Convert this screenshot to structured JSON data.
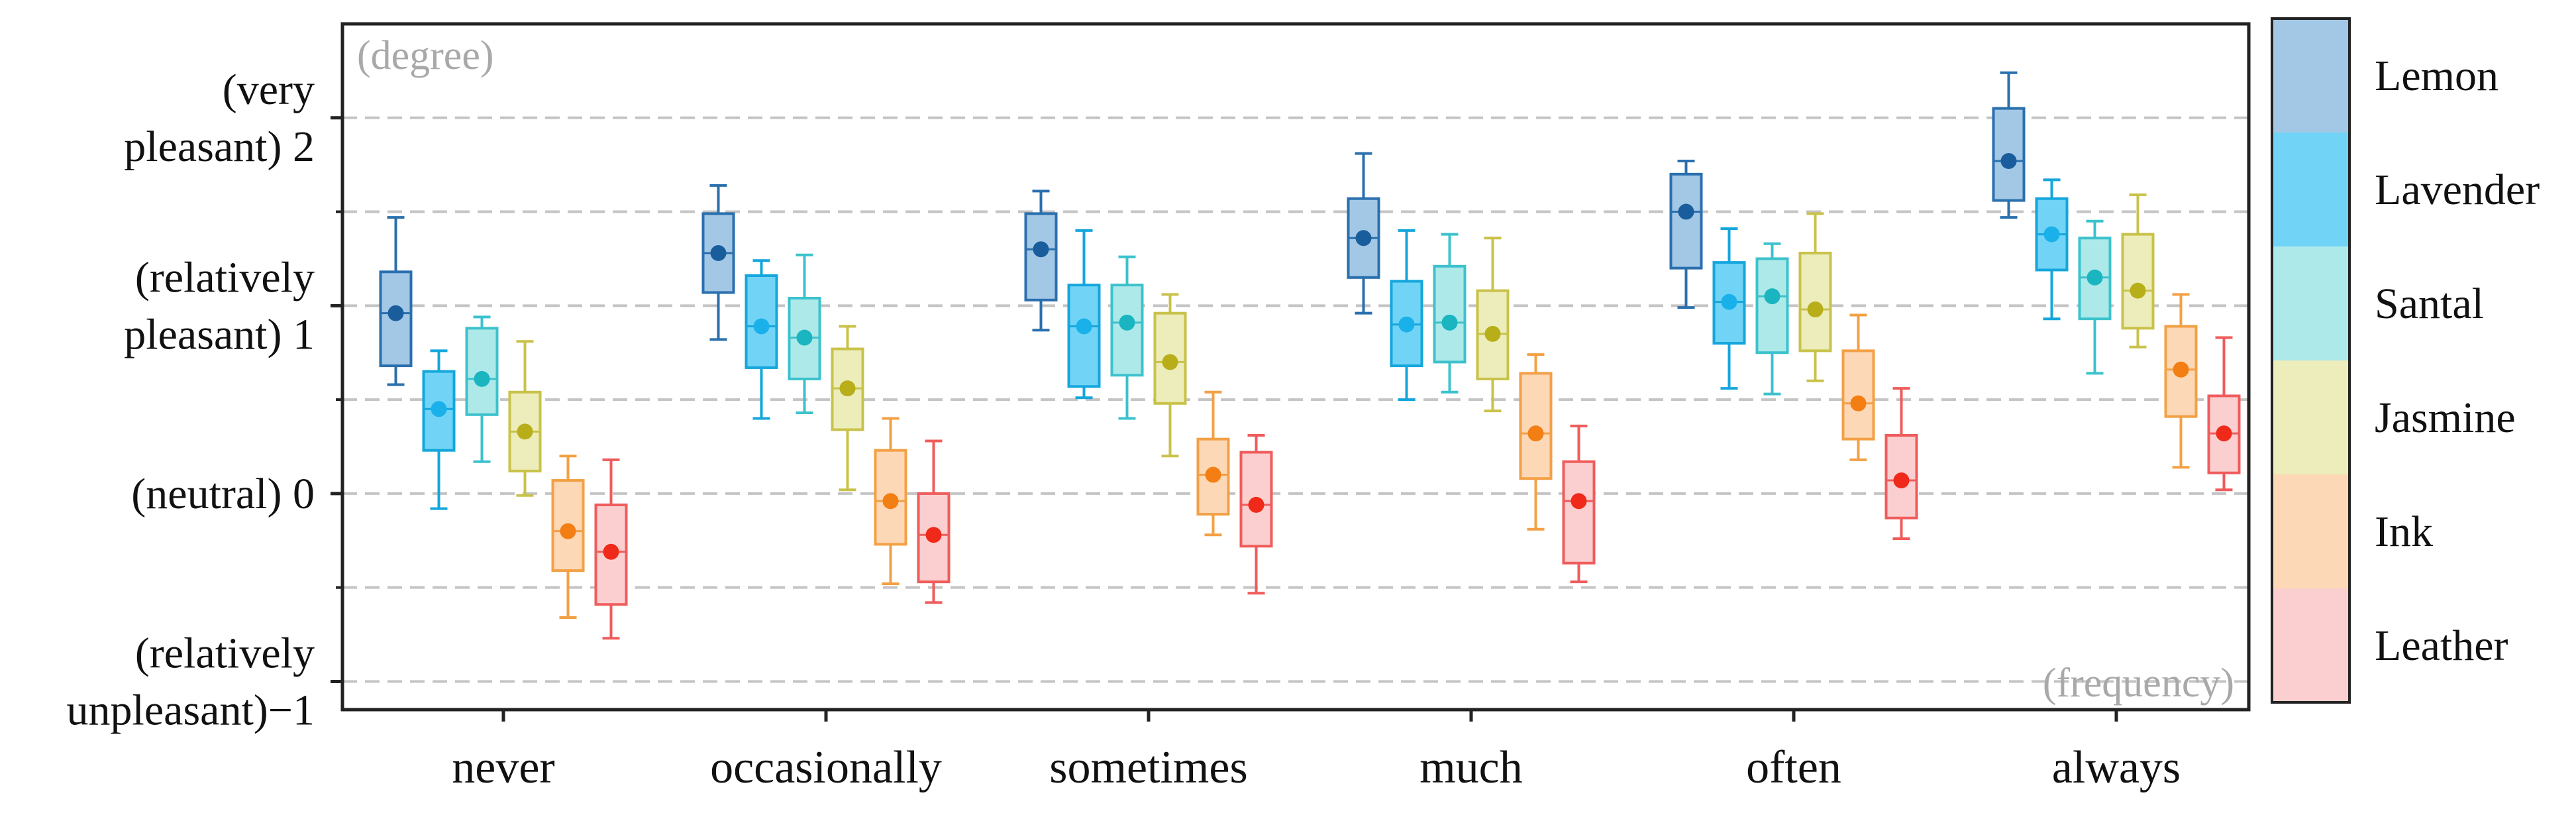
{
  "chart_data": {
    "type": "box",
    "y_axis_corner_label": "(degree)",
    "x_axis_corner_label": "(frequency)",
    "ylim": [
      -1.15,
      2.5
    ],
    "gridlines_y": [
      2.0,
      1.5,
      1.0,
      0.5,
      0.0,
      -0.5,
      -1.0
    ],
    "y_ticks": [
      {
        "value": 2,
        "label_lines": [
          "(very",
          "pleasant) 2"
        ]
      },
      {
        "value": 1,
        "label_lines": [
          "(relatively",
          "pleasant) 1"
        ]
      },
      {
        "value": 0,
        "label_lines": [
          "(neutral) 0"
        ]
      },
      {
        "value": -1,
        "label_lines": [
          "(relatively",
          "unpleasant)−1"
        ]
      }
    ],
    "categories": [
      "never",
      "occasionally",
      "sometimes",
      "much",
      "often",
      "always"
    ],
    "series": [
      {
        "name": "Lemon",
        "fill": "#a3c8e6",
        "stroke": "#2a6fae",
        "dot": "#1a5d9c",
        "boxes": [
          {
            "min": 0.58,
            "q1": 0.68,
            "median": 0.96,
            "q3": 1.18,
            "max": 1.47,
            "mean": 0.96
          },
          {
            "min": 0.82,
            "q1": 1.07,
            "median": 1.28,
            "q3": 1.49,
            "max": 1.64,
            "mean": 1.28
          },
          {
            "min": 0.87,
            "q1": 1.03,
            "median": 1.3,
            "q3": 1.49,
            "max": 1.61,
            "mean": 1.3
          },
          {
            "min": 0.96,
            "q1": 1.15,
            "median": 1.36,
            "q3": 1.57,
            "max": 1.81,
            "mean": 1.36
          },
          {
            "min": 0.99,
            "q1": 1.2,
            "median": 1.5,
            "q3": 1.7,
            "max": 1.77,
            "mean": 1.5
          },
          {
            "min": 1.47,
            "q1": 1.56,
            "median": 1.77,
            "q3": 2.05,
            "max": 2.24,
            "mean": 1.77
          }
        ]
      },
      {
        "name": "Lavender",
        "fill": "#71d4f6",
        "stroke": "#14a6dc",
        "dot": "#1ab0ea",
        "boxes": [
          {
            "min": -0.08,
            "q1": 0.23,
            "median": 0.45,
            "q3": 0.65,
            "max": 0.76,
            "mean": 0.45
          },
          {
            "min": 0.4,
            "q1": 0.67,
            "median": 0.89,
            "q3": 1.16,
            "max": 1.24,
            "mean": 0.89
          },
          {
            "min": 0.51,
            "q1": 0.57,
            "median": 0.89,
            "q3": 1.11,
            "max": 1.4,
            "mean": 0.89
          },
          {
            "min": 0.5,
            "q1": 0.68,
            "median": 0.9,
            "q3": 1.13,
            "max": 1.4,
            "mean": 0.9
          },
          {
            "min": 0.56,
            "q1": 0.8,
            "median": 1.02,
            "q3": 1.23,
            "max": 1.41,
            "mean": 1.02
          },
          {
            "min": 0.93,
            "q1": 1.19,
            "median": 1.38,
            "q3": 1.57,
            "max": 1.67,
            "mean": 1.38
          }
        ]
      },
      {
        "name": "Santal",
        "fill": "#aee9ea",
        "stroke": "#3cc2cc",
        "dot": "#1ab5c0",
        "boxes": [
          {
            "min": 0.17,
            "q1": 0.42,
            "median": 0.61,
            "q3": 0.88,
            "max": 0.94,
            "mean": 0.61
          },
          {
            "min": 0.43,
            "q1": 0.61,
            "median": 0.83,
            "q3": 1.04,
            "max": 1.27,
            "mean": 0.83
          },
          {
            "min": 0.4,
            "q1": 0.63,
            "median": 0.91,
            "q3": 1.11,
            "max": 1.26,
            "mean": 0.91
          },
          {
            "min": 0.54,
            "q1": 0.7,
            "median": 0.91,
            "q3": 1.21,
            "max": 1.38,
            "mean": 0.91
          },
          {
            "min": 0.53,
            "q1": 0.75,
            "median": 1.05,
            "q3": 1.25,
            "max": 1.33,
            "mean": 1.05
          },
          {
            "min": 0.64,
            "q1": 0.93,
            "median": 1.15,
            "q3": 1.36,
            "max": 1.45,
            "mean": 1.15
          }
        ]
      },
      {
        "name": "Jasmine",
        "fill": "#ecedba",
        "stroke": "#c9c24a",
        "dot": "#b8ae1a",
        "boxes": [
          {
            "min": -0.01,
            "q1": 0.12,
            "median": 0.33,
            "q3": 0.54,
            "max": 0.81,
            "mean": 0.33
          },
          {
            "min": 0.02,
            "q1": 0.34,
            "median": 0.56,
            "q3": 0.77,
            "max": 0.89,
            "mean": 0.56
          },
          {
            "min": 0.2,
            "q1": 0.48,
            "median": 0.7,
            "q3": 0.96,
            "max": 1.06,
            "mean": 0.7
          },
          {
            "min": 0.44,
            "q1": 0.61,
            "median": 0.85,
            "q3": 1.08,
            "max": 1.36,
            "mean": 0.85
          },
          {
            "min": 0.6,
            "q1": 0.76,
            "median": 0.98,
            "q3": 1.28,
            "max": 1.49,
            "mean": 0.98
          },
          {
            "min": 0.78,
            "q1": 0.88,
            "median": 1.08,
            "q3": 1.38,
            "max": 1.59,
            "mean": 1.08
          }
        ]
      },
      {
        "name": "Ink",
        "fill": "#fcd8b6",
        "stroke": "#f3a045",
        "dot": "#f37e14",
        "boxes": [
          {
            "min": -0.66,
            "q1": -0.41,
            "median": -0.2,
            "q3": 0.07,
            "max": 0.2,
            "mean": -0.2
          },
          {
            "min": -0.48,
            "q1": -0.27,
            "median": -0.04,
            "q3": 0.23,
            "max": 0.4,
            "mean": -0.04
          },
          {
            "min": -0.22,
            "q1": -0.11,
            "median": 0.1,
            "q3": 0.29,
            "max": 0.54,
            "mean": 0.1
          },
          {
            "min": -0.19,
            "q1": 0.08,
            "median": 0.32,
            "q3": 0.64,
            "max": 0.74,
            "mean": 0.32
          },
          {
            "min": 0.18,
            "q1": 0.29,
            "median": 0.48,
            "q3": 0.76,
            "max": 0.95,
            "mean": 0.48
          },
          {
            "min": 0.14,
            "q1": 0.41,
            "median": 0.66,
            "q3": 0.89,
            "max": 1.06,
            "mean": 0.66
          }
        ]
      },
      {
        "name": "Leather",
        "fill": "#fbcfcf",
        "stroke": "#ef5c5c",
        "dot": "#ef2a1a",
        "boxes": [
          {
            "min": -0.77,
            "q1": -0.59,
            "median": -0.31,
            "q3": -0.06,
            "max": 0.18,
            "mean": -0.31
          },
          {
            "min": -0.58,
            "q1": -0.47,
            "median": -0.22,
            "q3": 0.0,
            "max": 0.28,
            "mean": -0.22
          },
          {
            "min": -0.53,
            "q1": -0.28,
            "median": -0.06,
            "q3": 0.22,
            "max": 0.31,
            "mean": -0.06
          },
          {
            "min": -0.47,
            "q1": -0.37,
            "median": -0.04,
            "q3": 0.17,
            "max": 0.36,
            "mean": -0.04
          },
          {
            "min": -0.24,
            "q1": -0.13,
            "median": 0.07,
            "q3": 0.31,
            "max": 0.56,
            "mean": 0.07
          },
          {
            "min": 0.02,
            "q1": 0.11,
            "median": 0.32,
            "q3": 0.52,
            "max": 0.83,
            "mean": 0.32
          }
        ]
      }
    ],
    "legend": {
      "placement": "right",
      "entries": [
        "Lemon",
        "Lavender",
        "Santal",
        "Jasmine",
        "Ink",
        "Leather"
      ]
    }
  }
}
